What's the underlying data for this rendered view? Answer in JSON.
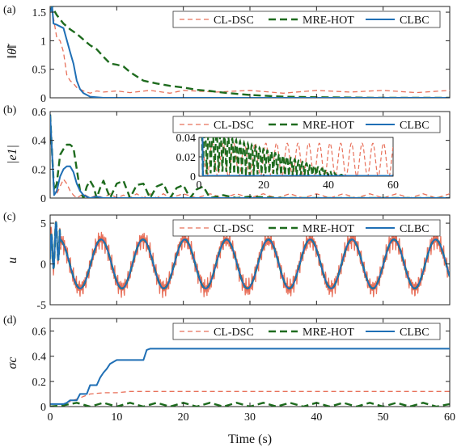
{
  "chart_data": [
    {
      "type": "line",
      "panel_label": "(a)",
      "ylabel": "‖θ̃‖",
      "xlim": [
        0,
        60
      ],
      "ylim": [
        0,
        1.6
      ],
      "xticks": [
        "0",
        "10",
        "20",
        "30",
        "40",
        "50",
        "60"
      ],
      "yticks": [
        {
          "v": 0,
          "t": "0"
        },
        {
          "v": 0.5,
          "t": "0.5"
        },
        {
          "v": 1,
          "t": "1"
        },
        {
          "v": 1.5,
          "t": "1.5"
        }
      ],
      "show_xtick_labels": false,
      "legend_position": "top-right",
      "series": [
        {
          "name": "CL-DSC",
          "color": "#e8705a",
          "dash": "dashed",
          "x": [
            0,
            0.3,
            0.5,
            1,
            1.5,
            2,
            2.5,
            3,
            3.5,
            4,
            5,
            6,
            7,
            8,
            10,
            12,
            15,
            18,
            20,
            25,
            30,
            35,
            40,
            45,
            50,
            55,
            60
          ],
          "y": [
            1.5,
            1.6,
            1.4,
            1.05,
            1.0,
            0.8,
            0.4,
            0.3,
            0.25,
            0.18,
            0.12,
            0.08,
            0.12,
            0.1,
            0.12,
            0.09,
            0.13,
            0.08,
            0.13,
            0.1,
            0.13,
            0.08,
            0.13,
            0.1,
            0.13,
            0.09,
            0.13
          ]
        },
        {
          "name": "MRE-HOT",
          "color": "#1e6b1e",
          "dash": "bold-dashed",
          "x": [
            0,
            0.3,
            0.5,
            1,
            2,
            3,
            4,
            5,
            6,
            7,
            8,
            9,
            10,
            11,
            12,
            14,
            16,
            18,
            20,
            22,
            24,
            26,
            28,
            30,
            35,
            40,
            50,
            60
          ],
          "y": [
            1.5,
            1.6,
            1.55,
            1.45,
            1.3,
            1.2,
            1.12,
            1.02,
            0.92,
            0.85,
            0.72,
            0.6,
            0.58,
            0.55,
            0.45,
            0.3,
            0.25,
            0.21,
            0.18,
            0.14,
            0.12,
            0.09,
            0.07,
            0.05,
            0.02,
            0.01,
            0.0,
            0.0
          ]
        },
        {
          "name": "CLBC",
          "color": "#1f6fb5",
          "dash": "solid",
          "x": [
            0,
            0.3,
            0.5,
            1,
            1.5,
            2,
            3,
            3.5,
            4,
            4.5,
            5,
            6,
            8,
            10,
            20,
            30,
            40,
            50,
            60
          ],
          "y": [
            1.5,
            1.6,
            1.3,
            1.28,
            1.25,
            1.22,
            0.8,
            0.6,
            0.3,
            0.15,
            0.08,
            0.02,
            0.0,
            0.0,
            0.0,
            0.0,
            0.0,
            0.0,
            0.0
          ]
        }
      ]
    },
    {
      "type": "line",
      "panel_label": "(b)",
      "ylabel": "|e1|",
      "xlim": [
        0,
        60
      ],
      "ylim": [
        0,
        0.6
      ],
      "xticks": [
        "0",
        "10",
        "20",
        "30",
        "40",
        "50",
        "60"
      ],
      "yticks": [
        {
          "v": 0,
          "t": "0"
        },
        {
          "v": 0.2,
          "t": "0.2"
        },
        {
          "v": 0.4,
          "t": "0.4"
        },
        {
          "v": 0.6,
          "t": "0.6"
        }
      ],
      "show_xtick_labels": false,
      "legend_position": "top-right",
      "series": [
        {
          "name": "CL-DSC",
          "color": "#e8705a",
          "dash": "dashed",
          "x": [
            0,
            0.3,
            0.6,
            1,
            1.5,
            2,
            2.5,
            3,
            3.5,
            4,
            5,
            6,
            7,
            8,
            9,
            10,
            11,
            12,
            13,
            14,
            15,
            16,
            17,
            18,
            20,
            22,
            24,
            26,
            28,
            30,
            32,
            34,
            36,
            38,
            40,
            42,
            44,
            46,
            48,
            50,
            52,
            54,
            56,
            58,
            60
          ],
          "y": [
            0.58,
            0.3,
            0.05,
            0.03,
            0.08,
            0.13,
            0.1,
            0.05,
            0.02,
            0.0,
            0.03,
            0.0,
            0.02,
            0.0,
            0.03,
            0.0,
            0.02,
            0.0,
            0.03,
            0.0,
            0.03,
            0.0,
            0.03,
            0.0,
            0.03,
            0.0,
            0.03,
            0.0,
            0.03,
            0.0,
            0.03,
            0.0,
            0.03,
            0.0,
            0.03,
            0.0,
            0.03,
            0.0,
            0.03,
            0.0,
            0.03,
            0.0,
            0.03,
            0.0,
            0.03
          ]
        },
        {
          "name": "MRE-HOT",
          "color": "#1e6b1e",
          "dash": "bold-dashed",
          "x": [
            0,
            0.3,
            0.6,
            1,
            1.5,
            2,
            2.5,
            3,
            3.5,
            4,
            4.5,
            5,
            5.5,
            6,
            6.5,
            7,
            7.5,
            8,
            9,
            10,
            11,
            12,
            13,
            14,
            15,
            16,
            17,
            18,
            19,
            20,
            21,
            22,
            23,
            24,
            26,
            28,
            30,
            35,
            40,
            45,
            50,
            55,
            60
          ],
          "y": [
            0.58,
            0.3,
            0.05,
            0.1,
            0.3,
            0.34,
            0.37,
            0.37,
            0.35,
            0.2,
            0.05,
            0.0,
            0.08,
            0.12,
            0.08,
            0.0,
            0.07,
            0.12,
            0.0,
            0.1,
            0.12,
            0.0,
            0.09,
            0.1,
            0.0,
            0.08,
            0.1,
            0.0,
            0.07,
            0.09,
            0.0,
            0.06,
            0.08,
            0.0,
            0.02,
            0.0,
            0.01,
            0.0,
            0.0,
            0.0,
            0.0,
            0.0,
            0.0
          ]
        },
        {
          "name": "CLBC",
          "color": "#1f6fb5",
          "dash": "solid",
          "x": [
            0,
            0.3,
            0.6,
            1,
            1.5,
            2,
            2.5,
            3,
            3.5,
            4,
            4.5,
            5,
            6,
            7,
            8,
            10,
            20,
            30,
            40,
            50,
            60
          ],
          "y": [
            0.58,
            0.3,
            0.02,
            0.05,
            0.15,
            0.2,
            0.22,
            0.22,
            0.18,
            0.1,
            0.05,
            0.02,
            0.0,
            0.01,
            0.0,
            0.0,
            0.0,
            0.0,
            0.0,
            0.0,
            0.0
          ]
        }
      ],
      "inset": {
        "xlim": [
          0,
          60
        ],
        "ylim": [
          0,
          0.04
        ],
        "xticks": [
          "0",
          "20",
          "40",
          "60"
        ],
        "yticks": [
          {
            "v": 0,
            "t": "0"
          },
          {
            "v": 0.02,
            "t": "0.02"
          },
          {
            "v": 0.04,
            "t": "0.04"
          }
        ]
      }
    },
    {
      "type": "line",
      "panel_label": "(c)",
      "ylabel": "u",
      "xlim": [
        0,
        60
      ],
      "ylim": [
        -5,
        6
      ],
      "xticks": [
        "0",
        "10",
        "20",
        "30",
        "40",
        "50",
        "60"
      ],
      "yticks": [
        {
          "v": -5,
          "t": "-5"
        },
        {
          "v": 0,
          "t": "0"
        },
        {
          "v": 5,
          "t": "5"
        }
      ],
      "show_xtick_labels": false,
      "legend_position": "top-right",
      "series": [
        {
          "name": "CL-DSC",
          "color": "#e8705a",
          "dash": "dashed",
          "amplitude": 3.0,
          "period": 6.28,
          "noise": 1.2
        },
        {
          "name": "MRE-HOT",
          "color": "#1e6b1e",
          "dash": "bold-dashed",
          "amplitude": 3.0,
          "period": 6.28,
          "noise": 0
        },
        {
          "name": "CLBC",
          "color": "#1f6fb5",
          "dash": "solid",
          "amplitude": 3.0,
          "period": 6.28,
          "noise": 0
        }
      ]
    },
    {
      "type": "line",
      "panel_label": "(d)",
      "ylabel": "σc",
      "xlabel": "Time (s)",
      "xlim": [
        0,
        60
      ],
      "ylim": [
        0,
        0.7
      ],
      "xticks": [
        "0",
        "10",
        "20",
        "30",
        "40",
        "50",
        "60"
      ],
      "yticks": [
        {
          "v": 0,
          "t": "0"
        },
        {
          "v": 0.2,
          "t": "0.2"
        },
        {
          "v": 0.4,
          "t": "0.4"
        },
        {
          "v": 0.6,
          "t": "0.6"
        }
      ],
      "show_xtick_labels": true,
      "legend_position": "top-right",
      "series": [
        {
          "name": "CL-DSC",
          "color": "#e8705a",
          "dash": "dashed",
          "x": [
            0,
            2,
            3,
            4,
            5,
            6,
            8,
            10,
            12,
            14,
            20,
            30,
            40,
            50,
            60
          ],
          "y": [
            0.02,
            0.02,
            0.04,
            0.06,
            0.08,
            0.1,
            0.11,
            0.11,
            0.12,
            0.12,
            0.12,
            0.12,
            0.12,
            0.12,
            0.12
          ]
        },
        {
          "name": "MRE-HOT",
          "color": "#1e6b1e",
          "dash": "bold-dashed",
          "x": [
            0,
            2,
            4,
            6,
            8,
            10,
            12,
            14,
            16,
            18,
            20,
            22,
            24,
            26,
            28,
            30,
            32,
            34,
            36,
            38,
            40,
            42,
            44,
            46,
            48,
            50,
            52,
            54,
            56,
            58,
            60
          ],
          "y": [
            0.0,
            0.01,
            0.03,
            0.0,
            0.03,
            0.0,
            0.03,
            0.0,
            0.03,
            0.0,
            0.03,
            0.0,
            0.03,
            0.0,
            0.03,
            0.0,
            0.03,
            0.0,
            0.03,
            0.0,
            0.03,
            0.0,
            0.03,
            0.0,
            0.03,
            0.0,
            0.03,
            0.0,
            0.03,
            0.0,
            0.02
          ]
        },
        {
          "name": "CLBC",
          "color": "#1f6fb5",
          "dash": "solid",
          "x": [
            0,
            2,
            2.5,
            3,
            4,
            4.5,
            5.5,
            6,
            7,
            7.5,
            8,
            8.5,
            9,
            10,
            11,
            12,
            13,
            14,
            14.5,
            15,
            20,
            30,
            40,
            50,
            60
          ],
          "y": [
            0.02,
            0.02,
            0.03,
            0.05,
            0.05,
            0.1,
            0.1,
            0.17,
            0.17,
            0.23,
            0.27,
            0.3,
            0.34,
            0.37,
            0.37,
            0.37,
            0.37,
            0.37,
            0.45,
            0.46,
            0.46,
            0.46,
            0.46,
            0.46,
            0.46
          ]
        }
      ]
    }
  ]
}
